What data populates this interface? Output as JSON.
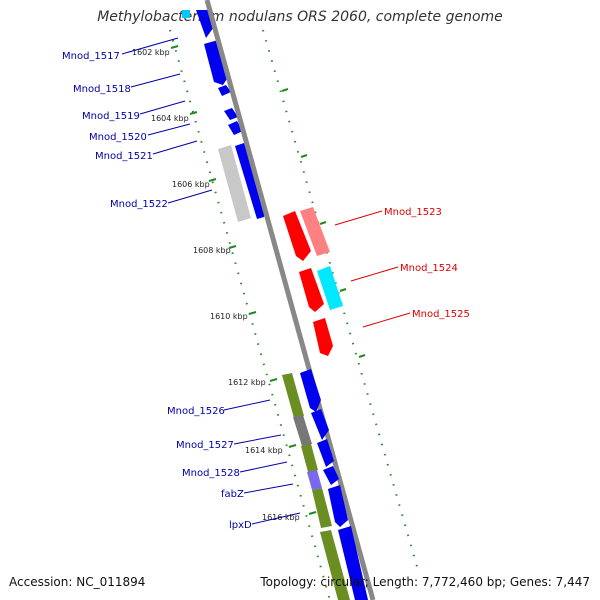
{
  "title": "Methylobacterium nodulans ORS 2060, complete genome",
  "accession_line": "Accession: NC_011894",
  "topology_line": "Topology: circular; Length: 7,772,460 bp; Genes: 7,447",
  "colors": {
    "backbone": "#888888",
    "forward_label": "#0000aa",
    "reverse_label": "#dd0000",
    "tick": "#228822"
  },
  "ticks": [
    {
      "label": "1602 kbp"
    },
    {
      "label": "1604 kbp"
    },
    {
      "label": "1606 kbp"
    },
    {
      "label": "1608 kbp"
    },
    {
      "label": "1610 kbp"
    },
    {
      "label": "1612 kbp"
    },
    {
      "label": "1614 kbp"
    },
    {
      "label": "1616 kbp"
    }
  ],
  "genes_left": [
    {
      "name": "Mnod_1517"
    },
    {
      "name": "Mnod_1518"
    },
    {
      "name": "Mnod_1519"
    },
    {
      "name": "Mnod_1520"
    },
    {
      "name": "Mnod_1521"
    },
    {
      "name": "Mnod_1522"
    },
    {
      "name": "Mnod_1526"
    },
    {
      "name": "Mnod_1527"
    },
    {
      "name": "Mnod_1528"
    },
    {
      "name": "fabZ"
    },
    {
      "name": "lpxD"
    }
  ],
  "genes_right": [
    {
      "name": "Mnod_1523"
    },
    {
      "name": "Mnod_1524"
    },
    {
      "name": "Mnod_1525"
    }
  ]
}
